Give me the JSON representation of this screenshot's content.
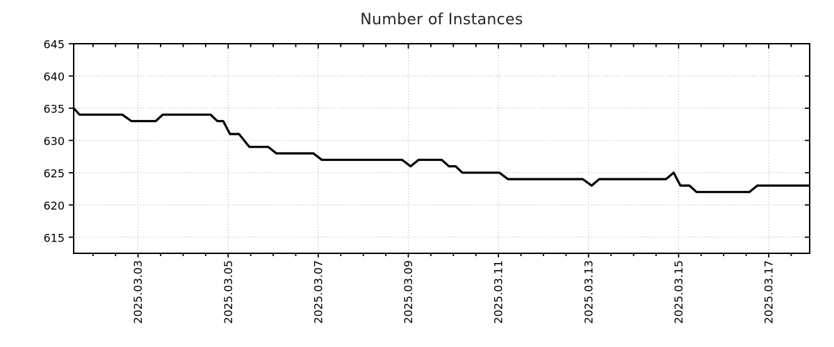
{
  "chart_data": {
    "type": "line",
    "title": "Number of Instances",
    "xlabel": "",
    "ylabel": "",
    "x_unit": "day of month, March 2025",
    "xlim": [
      1.57,
      17.91
    ],
    "ylim": [
      612.5,
      645
    ],
    "y_ticks": [
      615,
      620,
      625,
      630,
      635,
      640,
      645
    ],
    "x_major_ticks": [
      3,
      5,
      7,
      9,
      11,
      13,
      15,
      17
    ],
    "x_tick_labels": [
      "2025.03.03",
      "2025.03.05",
      "2025.03.07",
      "2025.03.09",
      "2025.03.11",
      "2025.03.13",
      "2025.03.15",
      "2025.03.17"
    ],
    "x_minor_step": 0.5,
    "grid": "dotted gridlines at major ticks, both axes",
    "legend": "none",
    "line_color": "#000000",
    "grid_color": "#a5a5a5",
    "background_color": "#ffffff",
    "series": [
      {
        "name": "instances",
        "points": [
          [
            1.57,
            635
          ],
          [
            1.7,
            634
          ],
          [
            2.65,
            634
          ],
          [
            2.85,
            633
          ],
          [
            3.39,
            633
          ],
          [
            3.55,
            634
          ],
          [
            4.61,
            634
          ],
          [
            4.76,
            633
          ],
          [
            4.89,
            633
          ],
          [
            5.04,
            631
          ],
          [
            5.24,
            631
          ],
          [
            5.47,
            629
          ],
          [
            5.89,
            629
          ],
          [
            6.07,
            628
          ],
          [
            6.89,
            628
          ],
          [
            7.08,
            627
          ],
          [
            8.86,
            627
          ],
          [
            9.05,
            626
          ],
          [
            9.23,
            627
          ],
          [
            9.74,
            627
          ],
          [
            9.9,
            626
          ],
          [
            10.05,
            626
          ],
          [
            10.2,
            625
          ],
          [
            11.02,
            625
          ],
          [
            11.21,
            624
          ],
          [
            12.87,
            624
          ],
          [
            13.07,
            623
          ],
          [
            13.24,
            624
          ],
          [
            14.72,
            624
          ],
          [
            14.89,
            625
          ],
          [
            15.04,
            623
          ],
          [
            15.24,
            623
          ],
          [
            15.4,
            622
          ],
          [
            16.57,
            622
          ],
          [
            16.75,
            623
          ],
          [
            17.91,
            623
          ]
        ]
      }
    ]
  }
}
